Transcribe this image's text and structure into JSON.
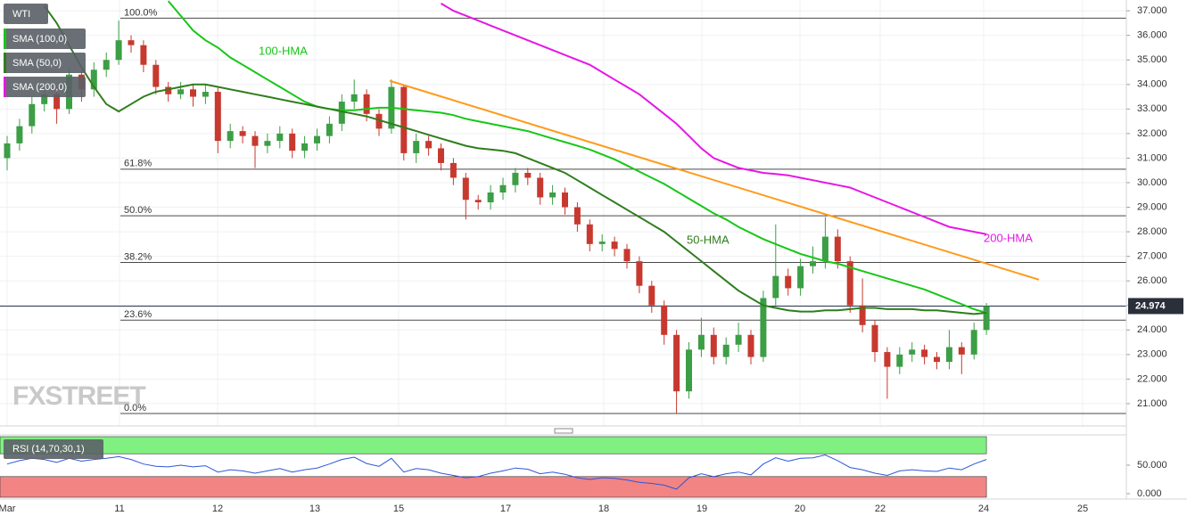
{
  "chart_data": {
    "type": "candlestick",
    "title": "WTI",
    "watermark": "FXSTREET",
    "up_color": "#3c9e45",
    "down_color": "#c7392f",
    "time_labels": [
      "Mar",
      "11",
      "12",
      "13",
      "15",
      "17",
      "18",
      "19",
      "20",
      "22",
      "24",
      "25"
    ],
    "ylim": [
      20.09,
      37.44
    ],
    "yticks": [
      {
        "value": 37,
        "label": "37.000"
      },
      {
        "value": 36,
        "label": "36.000"
      },
      {
        "value": 35,
        "label": "35.000"
      },
      {
        "value": 34,
        "label": "34.000"
      },
      {
        "value": 33,
        "label": "33.000"
      },
      {
        "value": 32,
        "label": "32.000"
      },
      {
        "value": 31,
        "label": "31.000"
      },
      {
        "value": 30,
        "label": "30.000"
      },
      {
        "value": 29,
        "label": "29.000"
      },
      {
        "value": 28,
        "label": "28.000"
      },
      {
        "value": 27,
        "label": "27.000"
      },
      {
        "value": 26,
        "label": "26.000"
      },
      {
        "value": 25,
        "label": "25.000"
      },
      {
        "value": 24,
        "label": "24.000"
      },
      {
        "value": 23,
        "label": "23.000"
      },
      {
        "value": 22,
        "label": "22.000"
      },
      {
        "value": 21,
        "label": "21.000"
      }
    ],
    "grid": true,
    "last_price": 24.974,
    "candles": [
      [
        31.0,
        31.9,
        30.5,
        31.6
      ],
      [
        31.6,
        32.6,
        31.3,
        32.3
      ],
      [
        32.3,
        33.5,
        32.0,
        33.2
      ],
      [
        33.2,
        33.9,
        32.9,
        33.6
      ],
      [
        33.6,
        33.9,
        32.4,
        33.0
      ],
      [
        33.0,
        34.7,
        32.8,
        34.4
      ],
      [
        34.4,
        34.6,
        33.3,
        33.8
      ],
      [
        33.8,
        34.9,
        33.5,
        34.6
      ],
      [
        34.6,
        35.3,
        34.3,
        35.0
      ],
      [
        35.0,
        36.6,
        34.8,
        35.8
      ],
      [
        35.8,
        36.0,
        35.3,
        35.6
      ],
      [
        35.6,
        35.8,
        34.5,
        34.8
      ],
      [
        34.8,
        35.0,
        33.6,
        33.9
      ],
      [
        33.9,
        34.1,
        33.3,
        33.6
      ],
      [
        33.6,
        34.1,
        33.4,
        33.8
      ],
      [
        33.8,
        34.0,
        33.1,
        33.5
      ],
      [
        33.5,
        34.0,
        33.2,
        33.7
      ],
      [
        33.7,
        33.9,
        31.2,
        31.7
      ],
      [
        31.7,
        32.4,
        31.4,
        32.1
      ],
      [
        32.1,
        32.3,
        31.6,
        31.9
      ],
      [
        31.9,
        32.1,
        30.6,
        31.5
      ],
      [
        31.5,
        32.0,
        31.2,
        31.7
      ],
      [
        31.7,
        32.3,
        31.4,
        32.0
      ],
      [
        32.0,
        32.2,
        31.0,
        31.3
      ],
      [
        31.3,
        31.9,
        31.0,
        31.6
      ],
      [
        31.6,
        32.2,
        31.3,
        31.9
      ],
      [
        31.9,
        32.7,
        31.6,
        32.4
      ],
      [
        32.4,
        33.6,
        32.1,
        33.3
      ],
      [
        33.3,
        34.2,
        33.0,
        33.6
      ],
      [
        33.6,
        33.8,
        32.5,
        32.8
      ],
      [
        32.8,
        33.0,
        31.9,
        32.2
      ],
      [
        32.2,
        34.2,
        32.0,
        33.9
      ],
      [
        33.9,
        34.0,
        30.9,
        31.2
      ],
      [
        31.2,
        32.0,
        30.8,
        31.7
      ],
      [
        31.7,
        31.9,
        31.1,
        31.4
      ],
      [
        31.4,
        31.6,
        30.5,
        30.8
      ],
      [
        30.8,
        31.0,
        29.9,
        30.2
      ],
      [
        30.2,
        30.4,
        28.5,
        29.3
      ],
      [
        29.3,
        29.5,
        28.9,
        29.2
      ],
      [
        29.2,
        29.9,
        28.9,
        29.6
      ],
      [
        29.6,
        30.2,
        29.3,
        29.9
      ],
      [
        29.9,
        30.6,
        29.6,
        30.4
      ],
      [
        30.4,
        30.6,
        29.9,
        30.2
      ],
      [
        30.2,
        30.4,
        29.1,
        29.4
      ],
      [
        29.4,
        29.9,
        29.1,
        29.6
      ],
      [
        29.6,
        29.8,
        28.7,
        29.0
      ],
      [
        29.0,
        29.2,
        28.0,
        28.3
      ],
      [
        28.3,
        28.5,
        27.2,
        27.5
      ],
      [
        27.5,
        27.9,
        27.2,
        27.6
      ],
      [
        27.6,
        27.8,
        27.0,
        27.3
      ],
      [
        27.3,
        27.5,
        26.5,
        26.8
      ],
      [
        26.8,
        27.0,
        25.5,
        25.8
      ],
      [
        25.8,
        26.0,
        24.7,
        25.0
      ],
      [
        25.0,
        25.2,
        23.4,
        23.8
      ],
      [
        23.8,
        24.0,
        20.6,
        21.5
      ],
      [
        21.5,
        23.5,
        21.2,
        23.2
      ],
      [
        23.2,
        24.5,
        22.9,
        23.8
      ],
      [
        23.8,
        24.1,
        22.6,
        22.9
      ],
      [
        22.9,
        23.7,
        22.6,
        23.4
      ],
      [
        23.4,
        24.3,
        23.1,
        23.8
      ],
      [
        23.8,
        24.0,
        22.6,
        22.9
      ],
      [
        22.9,
        25.6,
        22.7,
        25.3
      ],
      [
        25.3,
        28.3,
        25.0,
        26.2
      ],
      [
        26.2,
        26.5,
        25.4,
        25.7
      ],
      [
        25.7,
        26.9,
        25.4,
        26.6
      ],
      [
        26.6,
        27.4,
        26.3,
        26.8
      ],
      [
        26.8,
        28.6,
        26.5,
        27.8
      ],
      [
        27.8,
        28.1,
        26.5,
        26.8
      ],
      [
        26.8,
        27.0,
        24.7,
        25.0
      ],
      [
        25.0,
        26.1,
        23.9,
        24.2
      ],
      [
        24.2,
        24.4,
        22.7,
        23.1
      ],
      [
        23.1,
        23.3,
        21.2,
        22.5
      ],
      [
        22.5,
        23.3,
        22.2,
        23.0
      ],
      [
        23.0,
        23.5,
        22.7,
        23.2
      ],
      [
        23.2,
        23.4,
        22.6,
        22.9
      ],
      [
        22.9,
        23.1,
        22.4,
        22.7
      ],
      [
        22.7,
        24.0,
        22.4,
        23.3
      ],
      [
        23.3,
        23.5,
        22.2,
        23.0
      ],
      [
        23.0,
        24.3,
        22.8,
        24.0
      ],
      [
        24.0,
        25.1,
        23.8,
        24.97
      ]
    ],
    "series": [
      {
        "name": "SMA (100,0)",
        "label": "100-HMA",
        "color": "#16c716",
        "values": [
          null,
          null,
          null,
          null,
          null,
          null,
          null,
          null,
          null,
          null,
          null,
          null,
          null,
          37.4,
          36.8,
          36.2,
          35.8,
          35.5,
          35.1,
          34.8,
          34.5,
          34.2,
          33.9,
          33.6,
          33.3,
          33.1,
          33.0,
          32.95,
          32.95,
          33.0,
          33.05,
          33.05,
          33.0,
          32.95,
          32.9,
          32.85,
          32.75,
          32.6,
          32.5,
          32.4,
          32.3,
          32.2,
          32.1,
          31.95,
          31.8,
          31.65,
          31.5,
          31.35,
          31.15,
          30.95,
          30.7,
          30.45,
          30.2,
          29.95,
          29.65,
          29.35,
          29.05,
          28.75,
          28.5,
          28.2,
          27.95,
          27.7,
          27.5,
          27.3,
          27.1,
          26.95,
          26.8,
          26.7,
          26.55,
          26.4,
          26.25,
          26.1,
          25.95,
          25.8,
          25.65,
          25.45,
          25.25,
          25.05,
          24.85,
          24.7
        ]
      },
      {
        "name": "SMA (50,0)",
        "label": "50-HMA",
        "color": "#2f7d1c",
        "values": [
          null,
          null,
          null,
          37.2,
          36.5,
          35.6,
          34.7,
          33.9,
          33.2,
          32.9,
          33.2,
          33.5,
          33.7,
          33.8,
          33.9,
          34.0,
          34.0,
          33.9,
          33.8,
          33.7,
          33.6,
          33.5,
          33.4,
          33.3,
          33.2,
          33.1,
          33.0,
          32.9,
          32.8,
          32.7,
          32.55,
          32.4,
          32.25,
          32.1,
          31.95,
          31.8,
          31.65,
          31.5,
          31.4,
          31.35,
          31.3,
          31.2,
          31.0,
          30.8,
          30.6,
          30.4,
          30.1,
          29.8,
          29.5,
          29.2,
          28.9,
          28.6,
          28.3,
          28.0,
          27.6,
          27.2,
          26.8,
          26.4,
          26.0,
          25.6,
          25.3,
          25.0,
          24.9,
          24.8,
          24.75,
          24.75,
          24.8,
          24.8,
          24.85,
          24.9,
          24.9,
          24.85,
          24.85,
          24.85,
          24.8,
          24.8,
          24.75,
          24.7,
          24.65,
          24.7
        ]
      },
      {
        "name": "SMA (200,0)",
        "label": "200-HMA",
        "color": "#e616e6",
        "values": [
          null,
          null,
          null,
          null,
          null,
          null,
          null,
          null,
          null,
          null,
          null,
          null,
          null,
          null,
          null,
          null,
          null,
          null,
          null,
          null,
          null,
          null,
          null,
          null,
          null,
          null,
          null,
          null,
          null,
          null,
          null,
          null,
          null,
          null,
          null,
          37.3,
          37.0,
          36.8,
          36.6,
          36.4,
          36.2,
          36.0,
          35.8,
          35.6,
          35.4,
          35.2,
          35.0,
          34.8,
          34.5,
          34.2,
          33.9,
          33.6,
          33.2,
          32.8,
          32.4,
          31.9,
          31.4,
          31.0,
          30.8,
          30.6,
          30.5,
          30.4,
          30.35,
          30.3,
          30.2,
          30.1,
          30.0,
          29.9,
          29.8,
          29.6,
          29.4,
          29.2,
          29.0,
          28.8,
          28.6,
          28.4,
          28.2,
          28.1,
          28.0,
          27.9
        ]
      }
    ],
    "fibonacci": [
      {
        "label": "100.0%",
        "value": 36.7
      },
      {
        "label": "61.8%",
        "value": 30.55
      },
      {
        "label": "50.0%",
        "value": 28.65
      },
      {
        "label": "38.2%",
        "value": 26.75
      },
      {
        "label": "23.6%",
        "value": 24.4
      },
      {
        "label": "0.0%",
        "value": 20.6
      }
    ],
    "trendline": {
      "color": "#ff9a1a",
      "values": [
        34.15,
        26.05
      ]
    },
    "rsi": {
      "name": "RSI (14,70,30,1)",
      "color": "#2d56d8",
      "ylim": [
        -6.25,
        100
      ],
      "overbought": 70,
      "oversold": 30,
      "yticks": [
        {
          "value": 50,
          "label": "50.000"
        },
        {
          "value": 0,
          "label": "0.000"
        }
      ],
      "values": [
        52,
        58,
        62,
        60,
        55,
        62,
        57,
        60,
        62,
        65,
        60,
        52,
        48,
        47,
        50,
        47,
        49,
        38,
        42,
        40,
        36,
        40,
        44,
        38,
        42,
        45,
        52,
        60,
        64,
        53,
        48,
        62,
        38,
        44,
        42,
        36,
        32,
        28,
        30,
        36,
        40,
        45,
        43,
        35,
        38,
        34,
        28,
        25,
        28,
        27,
        24,
        20,
        18,
        15,
        8,
        28,
        35,
        30,
        35,
        38,
        33,
        52,
        63,
        57,
        62,
        63,
        68,
        58,
        46,
        42,
        36,
        32,
        40,
        42,
        40,
        39,
        45,
        42,
        52,
        60
      ]
    }
  }
}
